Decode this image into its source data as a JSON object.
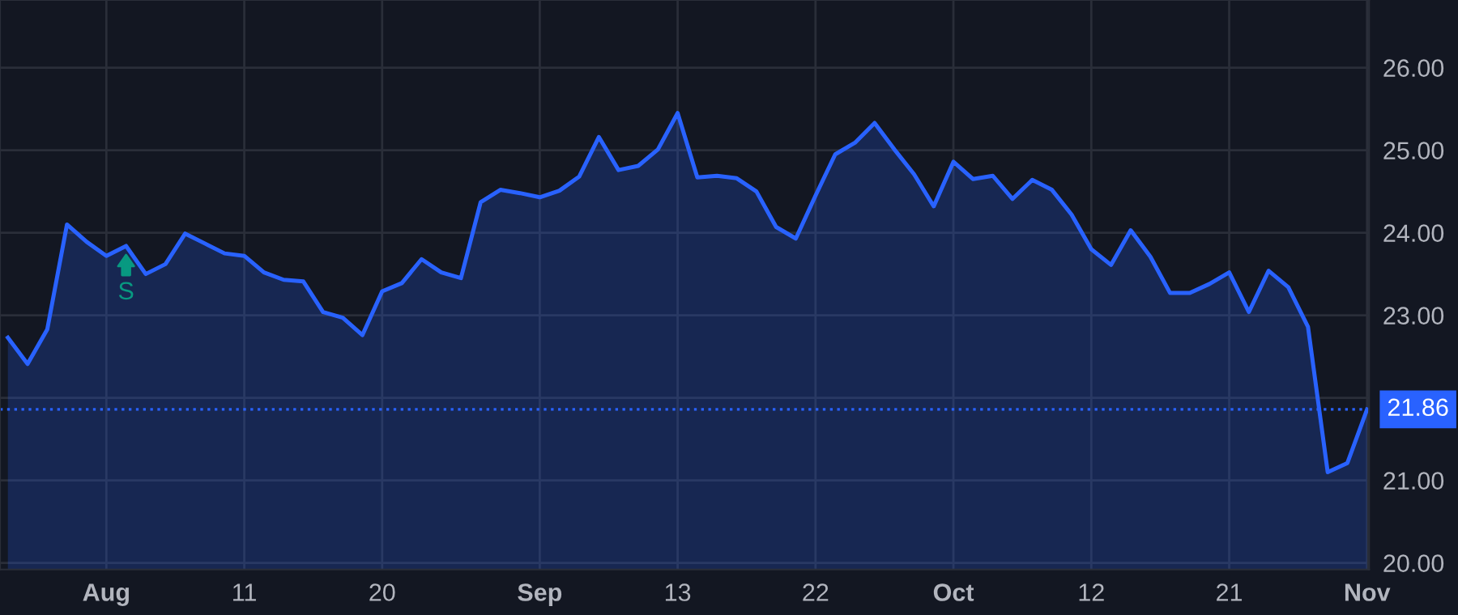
{
  "chart_data": {
    "type": "area",
    "categories": [
      null,
      null,
      null,
      null,
      null,
      "Aug",
      null,
      null,
      null,
      null,
      null,
      null,
      "11",
      null,
      null,
      null,
      null,
      null,
      null,
      "20",
      null,
      null,
      null,
      null,
      null,
      null,
      null,
      "Sep",
      null,
      null,
      null,
      null,
      null,
      null,
      "13",
      null,
      null,
      null,
      null,
      null,
      null,
      "22",
      null,
      null,
      null,
      null,
      null,
      null,
      "Oct",
      null,
      null,
      null,
      null,
      null,
      null,
      "12",
      null,
      null,
      null,
      null,
      null,
      null,
      "21",
      null,
      null,
      null,
      null,
      null,
      null,
      "Nov"
    ],
    "series": [
      {
        "color": "#2962ff",
        "values": [
          22.73,
          22.41,
          22.83,
          24.1,
          23.89,
          23.72,
          23.84,
          23.5,
          23.62,
          23.99,
          23.87,
          23.75,
          23.72,
          23.52,
          23.43,
          23.41,
          23.04,
          22.97,
          22.76,
          23.29,
          23.39,
          23.68,
          23.52,
          23.45,
          24.37,
          24.52,
          24.48,
          24.43,
          24.51,
          24.68,
          25.16,
          24.76,
          24.81,
          25.01,
          25.45,
          24.67,
          24.69,
          24.66,
          24.5,
          24.07,
          23.93,
          24.45,
          24.95,
          25.09,
          25.33,
          25.01,
          24.71,
          24.32,
          24.86,
          24.65,
          24.69,
          24.41,
          24.64,
          24.52,
          24.22,
          23.8,
          23.61,
          24.03,
          23.71,
          23.27,
          23.27,
          23.38,
          23.52,
          23.04,
          23.54,
          23.34,
          22.86,
          21.1,
          21.21,
          21.86
        ]
      }
    ],
    "ylim": [
      19.92,
      26.82
    ],
    "yticks": [
      {
        "value": 20,
        "label": "20.00"
      },
      {
        "value": 21,
        "label": "21.00"
      },
      {
        "value": 22,
        "label": null
      },
      {
        "value": 23,
        "label": "23.00"
      },
      {
        "value": 24,
        "label": "24.00"
      },
      {
        "value": 25,
        "label": "25.00"
      },
      {
        "value": 26,
        "label": "26.00"
      }
    ],
    "ref_lines": [
      {
        "axis": "y",
        "value": 21.86,
        "label": "21.86",
        "color": "#2962ff",
        "line_style": "dotted"
      }
    ],
    "annotations": [
      {
        "text": "S",
        "y": 23.84
      }
    ],
    "grid": true,
    "legend": false
  }
}
